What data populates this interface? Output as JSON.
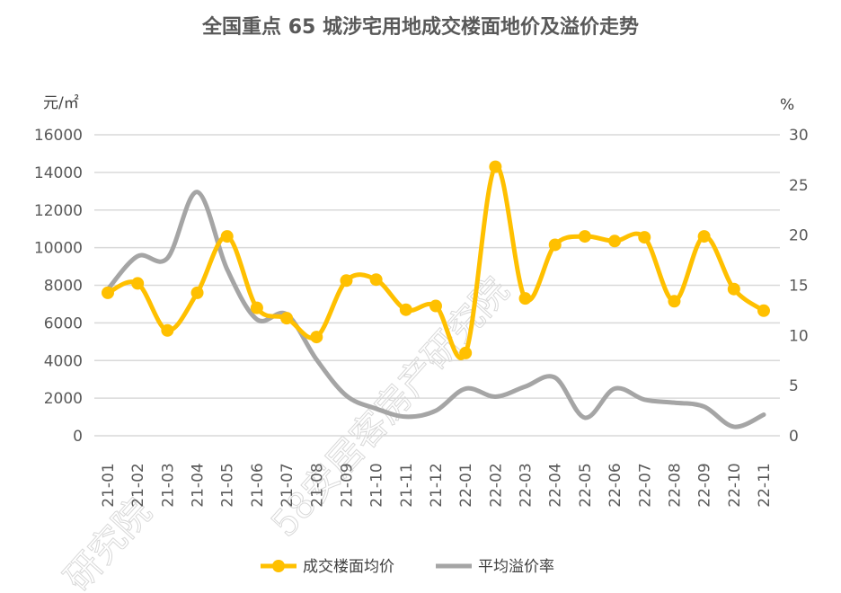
{
  "chart_data": {
    "type": "line",
    "title": "全国重点 65 城涉宅用地成交楼面地价及溢价走势",
    "ylabel_left": "元/㎡",
    "ylabel_right": "%",
    "ylim_left": [
      0,
      16000
    ],
    "ylim_right": [
      0,
      30
    ],
    "yticks_left": [
      "0",
      "2000",
      "4000",
      "6000",
      "8000",
      "10000",
      "12000",
      "14000",
      "16000"
    ],
    "yticks_right": [
      "0",
      "5",
      "10",
      "15",
      "20",
      "25",
      "30"
    ],
    "categories": [
      "21-01",
      "21-02",
      "21-03",
      "21-04",
      "21-05",
      "21-06",
      "21-07",
      "21-08",
      "21-09",
      "21-10",
      "21-11",
      "21-12",
      "22-01",
      "22-02",
      "22-03",
      "22-04",
      "22-05",
      "22-06",
      "22-07",
      "22-08",
      "22-09",
      "22-10",
      "22-11"
    ],
    "grid": true,
    "legend_position": "bottom",
    "series": [
      {
        "name": "成交楼面均价",
        "axis": "left",
        "color": "#FFC000",
        "markers": true,
        "values": [
          7600,
          8100,
          5600,
          7600,
          10600,
          6800,
          6250,
          5250,
          8250,
          8300,
          6700,
          6900,
          4400,
          14300,
          7300,
          10150,
          10600,
          10350,
          10550,
          7150,
          10600,
          7800,
          6650
        ]
      },
      {
        "name": "平均溢价率",
        "axis": "right",
        "color": "#A5A5A5",
        "markers": false,
        "values": [
          14.6,
          17.9,
          17.7,
          24.3,
          16.6,
          11.6,
          12.1,
          7.6,
          4.0,
          2.7,
          1.9,
          2.5,
          4.7,
          3.9,
          4.9,
          5.8,
          1.8,
          4.7,
          3.6,
          3.3,
          2.9,
          0.9,
          2.1
        ]
      }
    ]
  },
  "watermark": "58安居客房产研究院"
}
